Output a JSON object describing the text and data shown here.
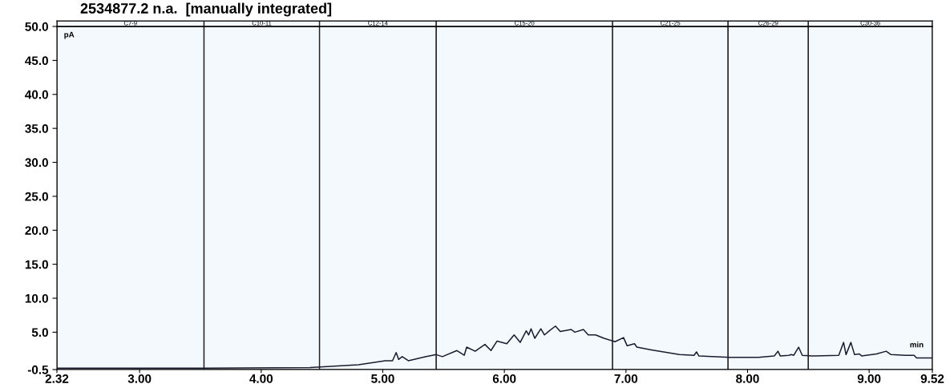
{
  "chart_data": {
    "type": "line",
    "title": "2534877.2 n.a.  [manually integrated]",
    "xlabel": "min",
    "ylabel": "pA",
    "x": [
      2.32,
      3.5,
      4.4,
      4.8,
      5.02,
      5.08,
      5.11,
      5.13,
      5.16,
      5.21,
      5.35,
      5.44,
      5.49,
      5.61,
      5.67,
      5.69,
      5.76,
      5.84,
      5.89,
      5.94,
      6.02,
      6.08,
      6.13,
      6.18,
      6.2,
      6.22,
      6.25,
      6.3,
      6.33,
      6.37,
      6.42,
      6.46,
      6.55,
      6.58,
      6.65,
      6.69,
      6.75,
      6.82,
      6.91,
      6.98,
      7.01,
      7.07,
      7.09,
      7.21,
      7.44,
      7.56,
      7.58,
      7.6,
      7.85,
      8.09,
      8.22,
      8.25,
      8.27,
      8.34,
      8.36,
      8.38,
      8.42,
      8.45,
      8.53,
      8.75,
      8.79,
      8.81,
      8.85,
      8.88,
      8.92,
      8.94,
      9.06,
      9.14,
      9.18,
      9.3,
      9.37,
      9.39,
      9.52
    ],
    "series": [
      {
        "color": "#1c1c30",
        "values": [
          -0.3,
          -0.3,
          -0.2,
          0.2,
          0.8,
          0.8,
          2.0,
          1.0,
          1.4,
          0.8,
          1.4,
          1.7,
          1.4,
          2.3,
          1.6,
          2.8,
          2.2,
          3.2,
          2.3,
          3.7,
          3.3,
          4.6,
          3.5,
          5.2,
          4.6,
          5.5,
          4.1,
          5.5,
          4.6,
          5.2,
          5.9,
          5.1,
          5.4,
          5.0,
          5.4,
          4.6,
          4.6,
          4.1,
          3.6,
          4.2,
          3.0,
          3.3,
          2.8,
          2.4,
          1.7,
          1.6,
          2.1,
          1.5,
          1.3,
          1.3,
          1.5,
          2.2,
          1.5,
          1.6,
          1.7,
          1.6,
          2.8,
          1.6,
          1.5,
          1.6,
          3.5,
          1.7,
          3.5,
          1.7,
          1.8,
          1.5,
          1.8,
          2.2,
          1.7,
          1.6,
          1.6,
          1.2,
          1.2
        ]
      }
    ],
    "xlim": [
      2.32,
      9.52
    ],
    "xticks": [
      2.32,
      {
        "value": 3,
        "label": "3.00"
      },
      {
        "value": 4,
        "label": "4.00"
      },
      {
        "value": 5,
        "label": "5.00"
      },
      {
        "value": 6,
        "label": "6.00"
      },
      {
        "value": 7,
        "label": "7.00"
      },
      {
        "value": 8,
        "label": "8.00"
      },
      {
        "value": 9,
        "label": "9.00"
      },
      9.52
    ],
    "ylim": [
      -0.5,
      50.0
    ],
    "yticks": [
      -0.5,
      {
        "value": 5,
        "label": "5.0"
      },
      {
        "value": 10,
        "label": "10.0"
      },
      {
        "value": 15,
        "label": "15.0"
      },
      {
        "value": 20,
        "label": "20.0"
      },
      {
        "value": 25,
        "label": "25.0"
      },
      {
        "value": 30,
        "label": "30.0"
      },
      {
        "value": 35,
        "label": "35.0"
      },
      {
        "value": 40,
        "label": "40.0"
      },
      {
        "value": 45,
        "label": "45.0"
      },
      {
        "value": 50,
        "label": "50.0"
      }
    ],
    "bands": [
      {
        "axis": "x",
        "from": 2.32,
        "to": 3.53,
        "label": "C7-9",
        "color": "#f3f9fd"
      },
      {
        "axis": "x",
        "from": 3.53,
        "to": 4.48,
        "label": "C10-11",
        "color": "#f3f9fd"
      },
      {
        "axis": "x",
        "from": 4.48,
        "to": 5.44,
        "label": "C12-14",
        "color": "#f3f9fd"
      },
      {
        "axis": "x",
        "from": 5.44,
        "to": 6.89,
        "label": "C15-20",
        "color": "#f3f9fd"
      },
      {
        "axis": "x",
        "from": 6.89,
        "to": 7.84,
        "label": "C21-25",
        "color": "#f3f9fd"
      },
      {
        "axis": "x",
        "from": 7.84,
        "to": 8.5,
        "label": "C26-29",
        "color": "#f3f9fd"
      },
      {
        "axis": "x",
        "from": 8.5,
        "to": 9.52,
        "label": "C30-36",
        "color": "#f3f9fd"
      }
    ],
    "grid": false,
    "legend": false,
    "marker": "none",
    "line_style": "solid"
  }
}
